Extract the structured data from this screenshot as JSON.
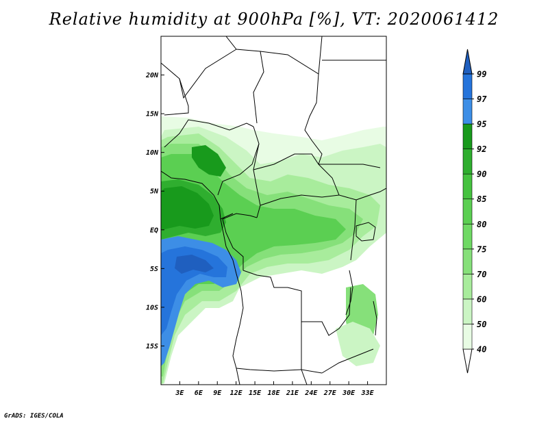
{
  "title": "Relative humidity at 900hPa [%], VT: 2020061412",
  "credit": "GrADS: IGES/COLA",
  "map": {
    "lon_range": [
      0,
      36
    ],
    "lat_range": [
      -20,
      25
    ],
    "lat_ticks": [
      {
        "value": 20,
        "label": "20N"
      },
      {
        "value": 15,
        "label": "15N"
      },
      {
        "value": 10,
        "label": "10N"
      },
      {
        "value": 5,
        "label": "5N"
      },
      {
        "value": 0,
        "label": "EQ"
      },
      {
        "value": -5,
        "label": "5S"
      },
      {
        "value": -10,
        "label": "10S"
      },
      {
        "value": -15,
        "label": "15S"
      }
    ],
    "lon_ticks": [
      {
        "value": 3,
        "label": "3E"
      },
      {
        "value": 6,
        "label": "6E"
      },
      {
        "value": 9,
        "label": "9E"
      },
      {
        "value": 12,
        "label": "12E"
      },
      {
        "value": 15,
        "label": "15E"
      },
      {
        "value": 18,
        "label": "18E"
      },
      {
        "value": 21,
        "label": "21E"
      },
      {
        "value": 24,
        "label": "24E"
      },
      {
        "value": 27,
        "label": "27E"
      },
      {
        "value": 30,
        "label": "30E"
      },
      {
        "value": 33,
        "label": "33E"
      }
    ]
  },
  "colorbar": {
    "levels": [
      {
        "label": "40",
        "color": "#e8fce4"
      },
      {
        "label": "50",
        "color": "#cbf5c4"
      },
      {
        "label": "60",
        "color": "#a8ec9c"
      },
      {
        "label": "70",
        "color": "#86e07a"
      },
      {
        "label": "75",
        "color": "#6fd964"
      },
      {
        "label": "80",
        "color": "#5bcf52"
      },
      {
        "label": "85",
        "color": "#45c23f"
      },
      {
        "label": "90",
        "color": "#2fae2f"
      },
      {
        "label": "92",
        "color": "#189a1c"
      },
      {
        "label": "95",
        "color": "#3d8ee6"
      },
      {
        "label": "97",
        "color": "#2574db"
      },
      {
        "label": "99",
        "color": "#1f5fbf"
      }
    ]
  }
}
